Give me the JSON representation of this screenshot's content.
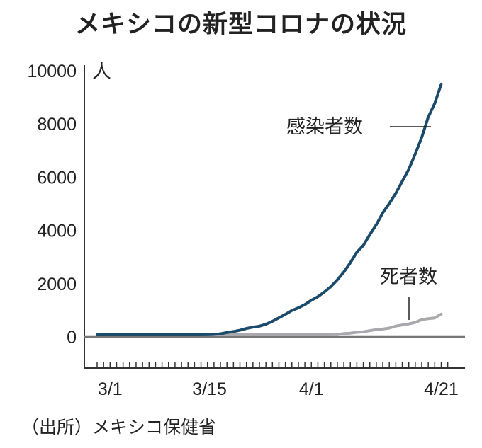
{
  "chart_data": {
    "type": "line",
    "title": "メキシコの新型コロナの状況",
    "ylabel": "人",
    "ylim": [
      0,
      10000
    ],
    "yticks": [
      "0",
      "2000",
      "4000",
      "6000",
      "8000",
      "10000"
    ],
    "xticks": [
      "3/1",
      "3/15",
      "4/1",
      "4/21"
    ],
    "x": [
      "2/28",
      "2/29",
      "3/1",
      "3/2",
      "3/3",
      "3/4",
      "3/5",
      "3/6",
      "3/7",
      "3/8",
      "3/9",
      "3/10",
      "3/11",
      "3/12",
      "3/13",
      "3/14",
      "3/15",
      "3/16",
      "3/17",
      "3/18",
      "3/19",
      "3/20",
      "3/21",
      "3/22",
      "3/23",
      "3/24",
      "3/25",
      "3/26",
      "3/27",
      "3/28",
      "3/29",
      "3/30",
      "3/31",
      "4/1",
      "4/2",
      "4/3",
      "4/4",
      "4/5",
      "4/6",
      "4/7",
      "4/8",
      "4/9",
      "4/10",
      "4/11",
      "4/12",
      "4/13",
      "4/14",
      "4/15",
      "4/16",
      "4/17",
      "4/18",
      "4/19",
      "4/20",
      "4/21"
    ],
    "series": [
      {
        "name": "感染者数",
        "color": "#1b4a6b",
        "values": [
          1,
          4,
          5,
          5,
          5,
          5,
          5,
          6,
          7,
          7,
          7,
          7,
          8,
          12,
          26,
          41,
          53,
          82,
          93,
          118,
          164,
          203,
          251,
          316,
          367,
          405,
          475,
          585,
          717,
          848,
          993,
          1094,
          1215,
          1378,
          1510,
          1688,
          1890,
          2143,
          2439,
          2785,
          3181,
          3441,
          3844,
          4219,
          4661,
          5014,
          5399,
          5847,
          6297,
          6875,
          7497,
          8261,
          8772,
          9501
        ]
      },
      {
        "name": "死者数",
        "color": "#a9a9ad",
        "values": [
          0,
          0,
          0,
          0,
          0,
          0,
          0,
          0,
          0,
          0,
          0,
          0,
          0,
          0,
          0,
          0,
          0,
          0,
          0,
          1,
          1,
          2,
          2,
          2,
          4,
          5,
          6,
          8,
          12,
          16,
          20,
          28,
          29,
          37,
          50,
          60,
          79,
          94,
          125,
          141,
          174,
          194,
          233,
          273,
          296,
          332,
          406,
          449,
          486,
          546,
          650,
          686,
          712,
          857
        ]
      }
    ],
    "grid": false,
    "source": "（出所）メキシコ保健省"
  }
}
